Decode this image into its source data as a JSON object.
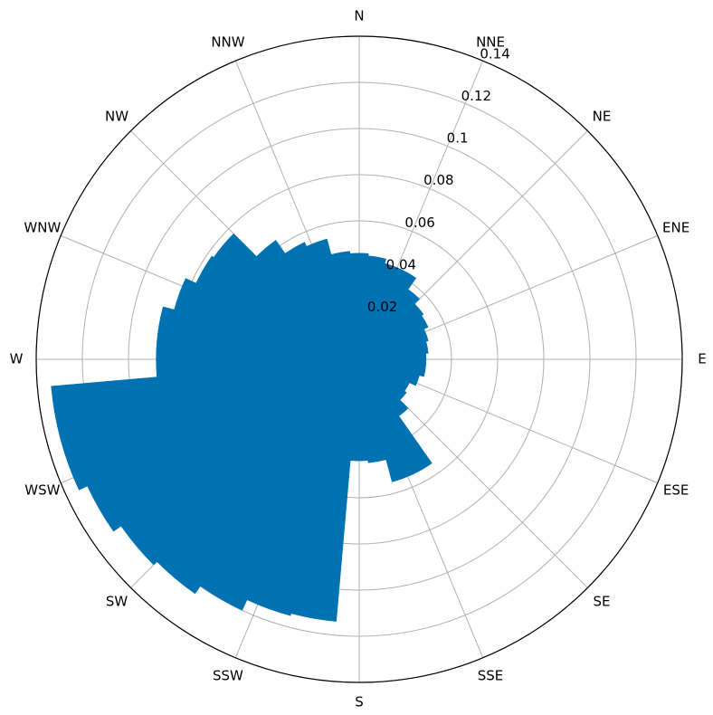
{
  "chart_data": {
    "type": "polar_bar",
    "x": [
      0,
      10,
      20,
      30,
      40,
      50,
      60,
      70,
      80,
      90,
      100,
      110,
      120,
      130,
      140,
      150,
      160,
      170,
      180,
      190,
      200,
      210,
      220,
      230,
      240,
      250,
      260,
      270,
      280,
      290,
      300,
      310,
      320,
      330,
      340,
      350
    ],
    "values": [
      0.046,
      0.045,
      0.043,
      0.043,
      0.037,
      0.034,
      0.033,
      0.031,
      0.03,
      0.029,
      0.029,
      0.027,
      0.024,
      0.025,
      0.03,
      0.055,
      0.055,
      0.045,
      0.044,
      0.114,
      0.115,
      0.12,
      0.124,
      0.126,
      0.13,
      0.134,
      0.134,
      0.088,
      0.088,
      0.083,
      0.078,
      0.077,
      0.063,
      0.056,
      0.054,
      0.047
    ],
    "bar_width": 10,
    "color": "#0072b2",
    "xlim": [
      0,
      360
    ],
    "xticks": [
      {
        "value": 0,
        "label": "N"
      },
      {
        "value": 22.5,
        "label": "NNE"
      },
      {
        "value": 45,
        "label": "NE"
      },
      {
        "value": 67.5,
        "label": "ENE"
      },
      {
        "value": 90,
        "label": "E"
      },
      {
        "value": 112.5,
        "label": "ESE"
      },
      {
        "value": 135,
        "label": "SE"
      },
      {
        "value": 157.5,
        "label": "SSE"
      },
      {
        "value": 180,
        "label": "S"
      },
      {
        "value": 202.5,
        "label": "SSW"
      },
      {
        "value": 225,
        "label": "SW"
      },
      {
        "value": 247.5,
        "label": "WSW"
      },
      {
        "value": 270,
        "label": "W"
      },
      {
        "value": 292.5,
        "label": "WNW"
      },
      {
        "value": 315,
        "label": "NW"
      },
      {
        "value": 337.5,
        "label": "NNW"
      }
    ],
    "ylim": [
      0,
      0.14
    ],
    "yticks": [
      0.02,
      0.04,
      0.06,
      0.08,
      0.1,
      0.12,
      0.14
    ],
    "grid": true
  }
}
